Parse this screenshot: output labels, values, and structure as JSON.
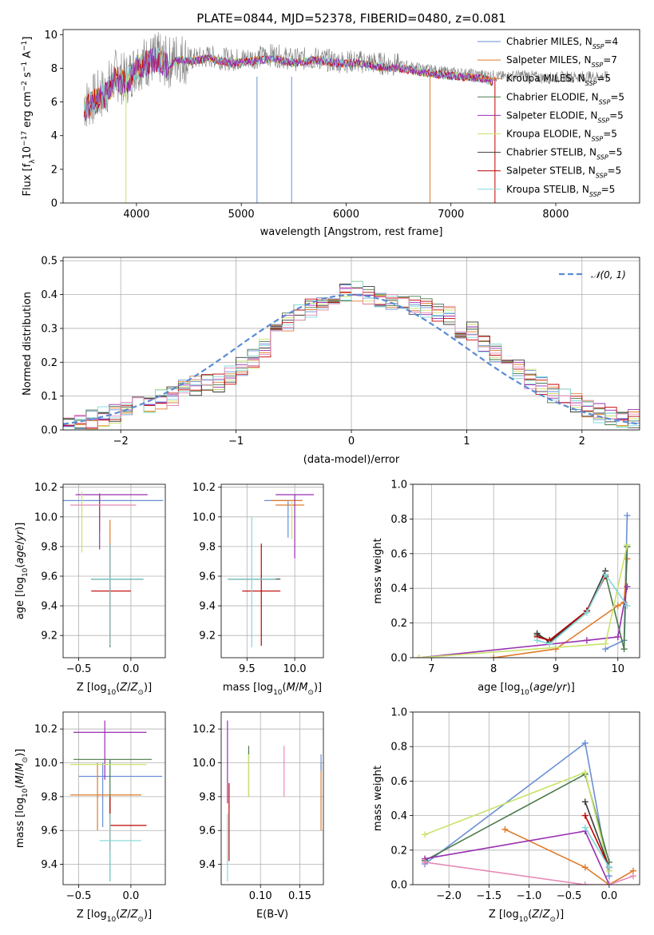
{
  "colors": {
    "Chabrier MILES": "#6a8fd6",
    "Salpeter MILES": "#e07b2a",
    "Kroupa MILES": "#e07b2a",
    "Chabrier ELODIE": "#4a7a4a",
    "Salpeter ELODIE": "#9a2fb0",
    "Kroupa ELODIE": "#c9e36a",
    "Chabrier STELIB": "#3a3a3a",
    "Salpeter STELIB": "#c00000",
    "Kroupa STELIB": "#80d8d8",
    "Extra pink": "#e58ab8",
    "normal_line": "#5b8bd4"
  },
  "chart_data": [
    {
      "id": "spectrum",
      "type": "line",
      "title": "PLATE=0844, MJD=52378, FIBERID=0480, z=0.081",
      "xlabel": "wavelength [Angstrom, rest frame]",
      "ylabel": "Flux [fλ10⁻¹⁷ erg cm⁻² s⁻¹ A⁻¹]",
      "xlim": [
        3300,
        8800
      ],
      "ylim": [
        0,
        10.3
      ],
      "xticks": [
        4000,
        5000,
        6000,
        7000,
        8000
      ],
      "yticks": [
        0,
        2,
        4,
        6,
        8,
        10
      ],
      "legend_position": "top-right",
      "legend": [
        {
          "label": "Chabrier MILES, N_SSP=4",
          "pre": "Chabrier MILES, N",
          "sub": "SSP",
          "post": "=4"
        },
        {
          "label": "Salpeter MILES, N_SSP=7",
          "pre": "Salpeter MILES, N",
          "sub": "SSP",
          "post": "=7"
        },
        {
          "label": "Kroupa MILES, N_SSP=5",
          "pre": "Kroupa MILES, N",
          "sub": "SSP",
          "post": "=5"
        },
        {
          "label": "Chabrier ELODIE, N_SSP=5",
          "pre": "Chabrier ELODIE, N",
          "sub": "SSP",
          "post": "=5"
        },
        {
          "label": "Salpeter ELODIE, N_SSP=5",
          "pre": "Salpeter ELODIE, N",
          "sub": "SSP",
          "post": "=5"
        },
        {
          "label": "Kroupa ELODIE, N_SSP=5",
          "pre": "Kroupa ELODIE, N",
          "sub": "SSP",
          "post": "=5"
        },
        {
          "label": "Chabrier STELIB, N_SSP=5",
          "pre": "Chabrier STELIB, N",
          "sub": "SSP",
          "post": "=5"
        },
        {
          "label": "Salpeter STELIB, N_SSP=5",
          "pre": "Salpeter STELIB, N",
          "sub": "SSP",
          "post": "=5"
        },
        {
          "label": "Kroupa STELIB, N_SSP=5",
          "pre": "Kroupa STELIB, N",
          "sub": "SSP",
          "post": "=5"
        }
      ],
      "data_x": [
        3500,
        3600,
        3700,
        3800,
        3900,
        4000,
        4100,
        4200,
        4300,
        4400,
        4500,
        4700,
        4900,
        5100,
        5300,
        5500,
        5700,
        5900,
        6100,
        6300,
        6500,
        6700,
        6900,
        7100,
        7300,
        7500,
        7700,
        7900,
        8100,
        8300,
        8500
      ],
      "data_y": [
        5.8,
        6.2,
        6.6,
        7.6,
        7.3,
        8.2,
        8.4,
        8.6,
        8.3,
        8.7,
        8.5,
        8.7,
        8.5,
        8.6,
        8.8,
        8.5,
        8.6,
        8.4,
        8.4,
        8.3,
        8.2,
        8.0,
        7.8,
        7.7,
        7.6,
        7.5,
        7.6,
        7.4,
        7.5,
        7.5,
        7.5
      ],
      "model_x": [
        3500,
        3600,
        3700,
        3800,
        3900,
        4000,
        4100,
        4200,
        4300,
        4400,
        4500,
        4700,
        4900,
        5100,
        5300,
        5500,
        5700,
        5900,
        6100,
        6300,
        6500,
        6700,
        6900,
        7100,
        7300,
        7400
      ],
      "model_y": [
        5.6,
        6.0,
        6.4,
        7.4,
        7.0,
        8.0,
        8.3,
        8.5,
        8.1,
        8.5,
        8.4,
        8.6,
        8.3,
        8.4,
        8.6,
        8.3,
        8.5,
        8.3,
        8.3,
        8.1,
        8.0,
        7.8,
        7.6,
        7.5,
        7.4,
        7.2
      ]
    },
    {
      "id": "residuals",
      "type": "line",
      "xlabel": "(data-model)/error",
      "ylabel": "Normed distribution",
      "xlim": [
        -2.5,
        2.5
      ],
      "ylim": [
        0,
        0.51
      ],
      "xticks": [
        -2,
        -1,
        0,
        1,
        2
      ],
      "yticks": [
        0.0,
        0.1,
        0.2,
        0.3,
        0.4,
        0.5
      ],
      "legend_position": "top-right",
      "legend": [
        "𝒩(0, 1)"
      ],
      "bin_width": 0.1,
      "bin_start": -2.5,
      "hist_values": [
        0.02,
        0.02,
        0.03,
        0.04,
        0.05,
        0.06,
        0.07,
        0.08,
        0.09,
        0.1,
        0.12,
        0.13,
        0.14,
        0.14,
        0.16,
        0.19,
        0.21,
        0.24,
        0.29,
        0.32,
        0.34,
        0.36,
        0.37,
        0.38,
        0.41,
        0.41,
        0.4,
        0.39,
        0.38,
        0.38,
        0.37,
        0.36,
        0.35,
        0.34,
        0.3,
        0.29,
        0.26,
        0.23,
        0.21,
        0.18,
        0.15,
        0.13,
        0.11,
        0.1,
        0.08,
        0.06,
        0.05,
        0.04,
        0.03,
        0.03
      ]
    },
    {
      "id": "age-vs-z",
      "type": "scatter",
      "xlabel": "Z [log10(Z/Z⊙)]",
      "ylabel": "age  [log10(age/yr)]",
      "xlim": [
        -0.65,
        0.33
      ],
      "ylim": [
        9.05,
        10.22
      ],
      "xticks": [
        -0.5,
        0.0
      ],
      "yticks": [
        9.2,
        9.4,
        9.6,
        9.8,
        10.0,
        10.2
      ],
      "points": [
        {
          "s": "Chabrier MILES",
          "x": -0.55,
          "y": 10.11,
          "xe": [
            -0.65,
            0.31
          ],
          "ye": [
            10.11,
            10.11
          ]
        },
        {
          "s": "Salpeter MILES",
          "x": -0.3,
          "y": 10.12,
          "xe": [
            -0.3,
            -0.3
          ],
          "ye": [
            9.9,
            10.16
          ]
        },
        {
          "s": "Kroupa MILES",
          "x": -0.2,
          "y": 9.72,
          "xe": [
            -0.2,
            -0.2
          ],
          "ye": [
            9.72,
            9.98
          ]
        },
        {
          "s": "Chabrier ELODIE",
          "x": -0.2,
          "y": 9.58,
          "xe": [
            -0.38,
            0.12
          ],
          "ye": [
            9.12,
            9.82
          ]
        },
        {
          "s": "Salpeter ELODIE",
          "x": -0.3,
          "y": 10.15,
          "xe": [
            -0.53,
            0.16
          ],
          "ye": [
            9.78,
            10.15
          ]
        },
        {
          "s": "Kroupa ELODIE",
          "x": -0.47,
          "y": 10.11,
          "xe": [
            -0.47,
            -0.47
          ],
          "ye": [
            9.76,
            10.17
          ]
        },
        {
          "s": "Chabrier STELIB",
          "x": -0.2,
          "y": 9.58,
          "xe": [
            -0.38,
            0.12
          ],
          "ye": [
            9.13,
            9.82
          ]
        },
        {
          "s": "Salpeter STELIB",
          "x": -0.2,
          "y": 9.5,
          "xe": [
            -0.38,
            0.0
          ],
          "ye": [
            9.13,
            9.82
          ]
        },
        {
          "s": "Kroupa STELIB",
          "x": -0.2,
          "y": 9.58,
          "xe": [
            -0.38,
            0.12
          ],
          "ye": [
            9.13,
            9.82
          ]
        },
        {
          "s": "Extra pink",
          "x": -0.5,
          "y": 10.08,
          "xe": [
            -0.58,
            0.05
          ],
          "ye": [
            10.08,
            10.08
          ]
        }
      ]
    },
    {
      "id": "age-vs-mass",
      "type": "scatter",
      "xlabel": "mass [log10(M/M⊙)]",
      "ylabel": "",
      "xlim": [
        9.23,
        10.3
      ],
      "ylim": [
        9.05,
        10.22
      ],
      "xticks": [
        9.5,
        10.0
      ],
      "yticks": [
        9.2,
        9.4,
        9.6,
        9.8,
        10.0,
        10.2
      ],
      "points": [
        {
          "s": "Chabrier MILES",
          "x": 9.93,
          "y": 10.11,
          "xe": [
            9.68,
            10.08
          ],
          "ye": [
            9.86,
            10.11
          ]
        },
        {
          "s": "Salpeter MILES",
          "x": 9.93,
          "y": 10.11,
          "xe": [
            9.75,
            10.08
          ],
          "ye": [
            10.11,
            10.11
          ]
        },
        {
          "s": "Kroupa MILES",
          "x": 9.9,
          "y": 10.08,
          "xe": [
            9.8,
            10.1
          ],
          "ye": [
            10.08,
            10.08
          ]
        },
        {
          "s": "Chabrier ELODIE",
          "x": 9.55,
          "y": 9.58,
          "xe": [
            9.3,
            9.8
          ],
          "ye": [
            9.58,
            9.58
          ]
        },
        {
          "s": "Salpeter ELODIE",
          "x": 10.0,
          "y": 10.15,
          "xe": [
            9.8,
            10.2
          ],
          "ye": [
            9.72,
            10.15
          ]
        },
        {
          "s": "Kroupa ELODIE",
          "x": 9.97,
          "y": 10.11,
          "xe": [
            9.97,
            9.97
          ],
          "ye": [
            9.85,
            10.11
          ]
        },
        {
          "s": "Chabrier STELIB",
          "x": 9.55,
          "y": 9.58,
          "xe": [
            9.3,
            9.85
          ],
          "ye": [
            9.58,
            9.58
          ]
        },
        {
          "s": "Salpeter STELIB",
          "x": 9.65,
          "y": 9.5,
          "xe": [
            9.45,
            9.85
          ],
          "ye": [
            9.13,
            9.82
          ]
        },
        {
          "s": "Kroupa STELIB",
          "x": 9.55,
          "y": 9.58,
          "xe": [
            9.3,
            9.8
          ],
          "ye": [
            9.12,
            10.0
          ]
        }
      ]
    },
    {
      "id": "mass-weight-vs-age",
      "type": "line",
      "xlabel": "age  [log10(age/yr)]",
      "ylabel": "mass weight",
      "xlim": [
        6.7,
        10.35
      ],
      "ylim": [
        0,
        1.0
      ],
      "xticks": [
        7,
        8,
        9,
        10
      ],
      "yticks": [
        0.0,
        0.2,
        0.4,
        0.6,
        0.8,
        1.0
      ],
      "series": [
        {
          "s": "Chabrier MILES",
          "x": [
            9.8,
            10.1,
            10.15
          ],
          "y": [
            0.05,
            0.1,
            0.82
          ]
        },
        {
          "s": "Salpeter MILES",
          "x": [
            8.0,
            9.0,
            10.0,
            10.1,
            10.15
          ],
          "y": [
            0.0,
            0.05,
            0.3,
            0.32,
            0.57
          ]
        },
        {
          "s": "Chabrier ELODIE",
          "x": [
            8.7,
            8.9,
            9.5,
            9.8,
            10.1,
            10.15
          ],
          "y": [
            0.13,
            0.1,
            0.27,
            0.48,
            0.05,
            0.64
          ]
        },
        {
          "s": "Salpeter ELODIE",
          "x": [
            6.8,
            9.5,
            10.0,
            10.15
          ],
          "y": [
            0.0,
            0.1,
            0.12,
            0.41
          ]
        },
        {
          "s": "Kroupa ELODIE",
          "x": [
            6.8,
            9.8,
            10.15
          ],
          "y": [
            0.0,
            0.08,
            0.65
          ]
        },
        {
          "s": "Chabrier STELIB",
          "x": [
            8.7,
            8.9,
            9.5,
            9.8
          ],
          "y": [
            0.14,
            0.09,
            0.27,
            0.5
          ]
        },
        {
          "s": "Salpeter STELIB",
          "x": [
            8.7,
            8.9,
            9.5,
            9.8
          ],
          "y": [
            0.12,
            0.1,
            0.27,
            0.47
          ]
        },
        {
          "s": "Kroupa STELIB",
          "x": [
            8.7,
            8.9,
            9.5,
            9.8,
            10.15
          ],
          "y": [
            0.1,
            0.08,
            0.26,
            0.48,
            0.3
          ]
        }
      ]
    },
    {
      "id": "mass-vs-z",
      "type": "scatter",
      "xlabel": "Z [log10(Z/Z⊙)]",
      "ylabel": "mass [log10(M/M⊙)]",
      "xlim": [
        -0.65,
        0.33
      ],
      "ylim": [
        9.28,
        10.3
      ],
      "xticks": [
        -0.5,
        0.0
      ],
      "yticks": [
        9.4,
        9.6,
        9.8,
        10.0,
        10.2
      ],
      "points": [
        {
          "s": "Chabrier MILES",
          "x": -0.27,
          "y": 9.92,
          "xe": [
            -0.5,
            0.3
          ],
          "ye": [
            9.62,
            10.0
          ]
        },
        {
          "s": "Salpeter MILES",
          "x": -0.32,
          "y": 9.81,
          "xe": [
            -0.58,
            0.1
          ],
          "ye": [
            9.6,
            10.0
          ]
        },
        {
          "s": "Chabrier ELODIE",
          "x": -0.2,
          "y": 10.02,
          "xe": [
            -0.55,
            0.2
          ],
          "ye": [
            9.3,
            10.02
          ]
        },
        {
          "s": "Salpeter ELODIE",
          "x": -0.25,
          "y": 10.18,
          "xe": [
            -0.55,
            0.15
          ],
          "ye": [
            9.9,
            10.25
          ]
        },
        {
          "s": "Kroupa ELODIE",
          "x": -0.3,
          "y": 9.99,
          "xe": [
            -0.58,
            0.15
          ],
          "ye": [
            9.99,
            9.99
          ]
        },
        {
          "s": "Salpeter STELIB",
          "x": -0.2,
          "y": 9.63,
          "xe": [
            -0.2,
            0.15
          ],
          "ye": [
            9.48,
            9.8
          ]
        },
        {
          "s": "Kroupa STELIB",
          "x": -0.2,
          "y": 9.54,
          "xe": [
            -0.3,
            0.1
          ],
          "ye": [
            9.3,
            9.7
          ]
        }
      ]
    },
    {
      "id": "mass-vs-ebv",
      "type": "scatter",
      "xlabel": "E(B-V)",
      "ylabel": "",
      "xlim": [
        0.05,
        0.18
      ],
      "ylim": [
        9.28,
        10.3
      ],
      "xticks": [
        0.1,
        0.15
      ],
      "yticks": [
        9.4,
        9.6,
        9.8,
        10.0,
        10.2
      ],
      "points": [
        {
          "s": "Salpeter ELODIE",
          "x": 0.058,
          "y": 10.0,
          "xe": [
            0.058,
            0.058
          ],
          "ye": [
            9.76,
            10.25
          ]
        },
        {
          "s": "Chabrier ELODIE",
          "x": 0.085,
          "y": 10.0,
          "xe": [
            0.085,
            0.085
          ],
          "ye": [
            9.8,
            10.1
          ]
        },
        {
          "s": "Kroupa ELODIE",
          "x": 0.085,
          "y": 10.0,
          "xe": [
            0.085,
            0.085
          ],
          "ye": [
            9.8,
            10.05
          ]
        },
        {
          "s": "Extra pink",
          "x": 0.13,
          "y": 10.0,
          "xe": [
            0.13,
            0.13
          ],
          "ye": [
            9.8,
            10.1
          ]
        },
        {
          "s": "Salpeter MILES",
          "x": 0.177,
          "y": 9.8,
          "xe": [
            0.177,
            0.177
          ],
          "ye": [
            9.6,
            10.0
          ]
        },
        {
          "s": "Chabrier MILES",
          "x": 0.177,
          "y": 10.0,
          "xe": [
            0.177,
            0.177
          ],
          "ye": [
            9.95,
            10.05
          ]
        },
        {
          "s": "Salpeter STELIB",
          "x": 0.06,
          "y": 9.6,
          "xe": [
            0.06,
            0.06
          ],
          "ye": [
            9.42,
            9.88
          ]
        },
        {
          "s": "Kroupa STELIB",
          "x": 0.058,
          "y": 9.5,
          "xe": [
            0.058,
            0.058
          ],
          "ye": [
            9.3,
            9.7
          ]
        }
      ]
    },
    {
      "id": "mass-weight-vs-z",
      "type": "line",
      "xlabel": "Z [log10(Z/Z⊙)]",
      "ylabel": "mass weight",
      "xlim": [
        -2.45,
        0.38
      ],
      "ylim": [
        0,
        1.0
      ],
      "xticks": [
        -2.0,
        -1.5,
        -1.0,
        -0.5,
        0.0
      ],
      "yticks": [
        0.0,
        0.2,
        0.4,
        0.6,
        0.8,
        1.0
      ],
      "series": [
        {
          "s": "Chabrier MILES",
          "x": [
            -2.3,
            -0.3,
            0.0
          ],
          "y": [
            0.12,
            0.82,
            0.05
          ]
        },
        {
          "s": "Salpeter MILES",
          "x": [
            -1.3,
            -0.3,
            0.0,
            0.3
          ],
          "y": [
            0.32,
            0.1,
            0.0,
            0.08
          ]
        },
        {
          "s": "Chabrier ELODIE",
          "x": [
            -2.3,
            -0.3,
            0.0
          ],
          "y": [
            0.14,
            0.64,
            0.13
          ]
        },
        {
          "s": "Salpeter ELODIE",
          "x": [
            -2.3,
            -0.3,
            0.0
          ],
          "y": [
            0.15,
            0.31,
            0.0
          ]
        },
        {
          "s": "Kroupa ELODIE",
          "x": [
            -2.3,
            -0.3,
            0.0
          ],
          "y": [
            0.29,
            0.65,
            0.08
          ]
        },
        {
          "s": "Chabrier STELIB",
          "x": [
            -0.3,
            0.0
          ],
          "y": [
            0.48,
            0.1
          ]
        },
        {
          "s": "Salpeter STELIB",
          "x": [
            -0.3,
            0.0
          ],
          "y": [
            0.4,
            0.1
          ]
        },
        {
          "s": "Kroupa STELIB",
          "x": [
            -0.3,
            0.0
          ],
          "y": [
            0.33,
            0.1
          ]
        },
        {
          "s": "Extra pink",
          "x": [
            -2.3,
            -0.3,
            0.0,
            0.3
          ],
          "y": [
            0.13,
            0.0,
            0.0,
            0.05
          ]
        }
      ]
    }
  ]
}
